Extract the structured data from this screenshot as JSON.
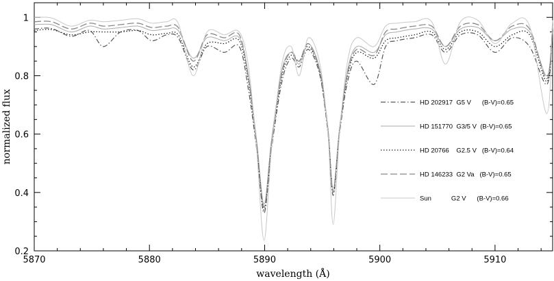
{
  "chart_data": {
    "type": "line",
    "xlabel": "wavelength (Å)",
    "ylabel": "normalized flux",
    "xlim": [
      5870,
      5915
    ],
    "ylim": [
      0.2,
      1.05
    ],
    "x_ticks": [
      5870,
      5880,
      5890,
      5900,
      5910
    ],
    "y_ticks": [
      0.2,
      0.4,
      0.6,
      0.8,
      1
    ],
    "grid": false,
    "legend_position": "center-right",
    "series": [
      {
        "label": "HD 202917  G5 V      (B-V)=0.65",
        "color": "#555555",
        "style": "dashdot",
        "points": [
          [
            5870,
            0.96
          ],
          [
            5871.5,
            0.962
          ],
          [
            5873.2,
            0.935
          ],
          [
            5874.8,
            0.955
          ],
          [
            5876,
            0.9
          ],
          [
            5877.5,
            0.95
          ],
          [
            5879,
            0.955
          ],
          [
            5880.2,
            0.92
          ],
          [
            5881.5,
            0.94
          ],
          [
            5882.5,
            0.93
          ],
          [
            5883.8,
            0.82
          ],
          [
            5885,
            0.9
          ],
          [
            5886.5,
            0.88
          ],
          [
            5887.8,
            0.9
          ],
          [
            5888.6,
            0.75
          ],
          [
            5889.3,
            0.55
          ],
          [
            5889.95,
            0.33
          ],
          [
            5890.6,
            0.55
          ],
          [
            5891.5,
            0.78
          ],
          [
            5892.3,
            0.86
          ],
          [
            5893,
            0.83
          ],
          [
            5893.8,
            0.89
          ],
          [
            5894.8,
            0.8
          ],
          [
            5895.5,
            0.6
          ],
          [
            5895.95,
            0.39
          ],
          [
            5896.5,
            0.6
          ],
          [
            5897.2,
            0.78
          ],
          [
            5898,
            0.85
          ],
          [
            5899.5,
            0.77
          ],
          [
            5900.5,
            0.9
          ],
          [
            5901.5,
            0.92
          ],
          [
            5903,
            0.93
          ],
          [
            5904.5,
            0.94
          ],
          [
            5905.7,
            0.88
          ],
          [
            5907,
            0.94
          ],
          [
            5908.5,
            0.94
          ],
          [
            5910,
            0.88
          ],
          [
            5911.5,
            0.93
          ],
          [
            5913,
            0.9
          ],
          [
            5914.5,
            0.77
          ],
          [
            5915,
            0.95
          ]
        ]
      },
      {
        "label": "HD 151770  G3/5 V  (B-V)=0.65",
        "color": "#aaaaaa",
        "style": "solid",
        "points": [
          [
            5870,
            0.975
          ],
          [
            5871.5,
            0.975
          ],
          [
            5873.2,
            0.95
          ],
          [
            5874.8,
            0.97
          ],
          [
            5876,
            0.96
          ],
          [
            5877.5,
            0.965
          ],
          [
            5879,
            0.97
          ],
          [
            5880.2,
            0.955
          ],
          [
            5881.5,
            0.96
          ],
          [
            5882.5,
            0.955
          ],
          [
            5883.8,
            0.86
          ],
          [
            5885,
            0.93
          ],
          [
            5886.5,
            0.92
          ],
          [
            5887.8,
            0.93
          ],
          [
            5888.6,
            0.8
          ],
          [
            5889.3,
            0.58
          ],
          [
            5889.95,
            0.36
          ],
          [
            5890.6,
            0.58
          ],
          [
            5891.5,
            0.82
          ],
          [
            5892.3,
            0.88
          ],
          [
            5893,
            0.84
          ],
          [
            5893.8,
            0.91
          ],
          [
            5894.8,
            0.82
          ],
          [
            5895.5,
            0.62
          ],
          [
            5895.95,
            0.41
          ],
          [
            5896.5,
            0.62
          ],
          [
            5897.2,
            0.82
          ],
          [
            5898,
            0.9
          ],
          [
            5899.5,
            0.88
          ],
          [
            5900.5,
            0.94
          ],
          [
            5901.5,
            0.95
          ],
          [
            5903,
            0.96
          ],
          [
            5904.5,
            0.96
          ],
          [
            5905.7,
            0.9
          ],
          [
            5907,
            0.96
          ],
          [
            5908.5,
            0.965
          ],
          [
            5910,
            0.92
          ],
          [
            5911.5,
            0.96
          ],
          [
            5913,
            0.95
          ],
          [
            5914.5,
            0.8
          ],
          [
            5915,
            0.97
          ]
        ]
      },
      {
        "label": "HD 20766    G2.5 V   (B-V)=0.64",
        "color": "#222222",
        "style": "dotted",
        "points": [
          [
            5870,
            0.955
          ],
          [
            5871.5,
            0.958
          ],
          [
            5873.2,
            0.94
          ],
          [
            5874.8,
            0.95
          ],
          [
            5876,
            0.95
          ],
          [
            5877.5,
            0.95
          ],
          [
            5879,
            0.955
          ],
          [
            5880.2,
            0.94
          ],
          [
            5881.5,
            0.945
          ],
          [
            5882.5,
            0.94
          ],
          [
            5883.8,
            0.83
          ],
          [
            5885,
            0.91
          ],
          [
            5886.5,
            0.91
          ],
          [
            5887.8,
            0.92
          ],
          [
            5888.6,
            0.78
          ],
          [
            5889.3,
            0.56
          ],
          [
            5889.95,
            0.34
          ],
          [
            5890.6,
            0.56
          ],
          [
            5891.5,
            0.8
          ],
          [
            5892.3,
            0.87
          ],
          [
            5893,
            0.85
          ],
          [
            5893.8,
            0.9
          ],
          [
            5894.8,
            0.81
          ],
          [
            5895.5,
            0.61
          ],
          [
            5895.95,
            0.4
          ],
          [
            5896.5,
            0.61
          ],
          [
            5897.2,
            0.8
          ],
          [
            5898,
            0.88
          ],
          [
            5899.5,
            0.86
          ],
          [
            5900.5,
            0.92
          ],
          [
            5901.5,
            0.93
          ],
          [
            5903,
            0.94
          ],
          [
            5904.5,
            0.95
          ],
          [
            5905.7,
            0.89
          ],
          [
            5907,
            0.95
          ],
          [
            5908.5,
            0.95
          ],
          [
            5910,
            0.9
          ],
          [
            5911.5,
            0.94
          ],
          [
            5913,
            0.94
          ],
          [
            5914.5,
            0.78
          ],
          [
            5915,
            0.95
          ]
        ]
      },
      {
        "label": "HD 146233  G2 Va   (B-V)=0.65",
        "color": "#888888",
        "style": "longdash",
        "points": [
          [
            5870,
            0.985
          ],
          [
            5871.5,
            0.985
          ],
          [
            5873.2,
            0.96
          ],
          [
            5874.8,
            0.98
          ],
          [
            5876,
            0.97
          ],
          [
            5877.5,
            0.975
          ],
          [
            5879,
            0.98
          ],
          [
            5880.2,
            0.965
          ],
          [
            5881.5,
            0.97
          ],
          [
            5882.5,
            0.965
          ],
          [
            5883.8,
            0.85
          ],
          [
            5885,
            0.94
          ],
          [
            5886.5,
            0.93
          ],
          [
            5887.8,
            0.94
          ],
          [
            5888.6,
            0.79
          ],
          [
            5889.3,
            0.57
          ],
          [
            5889.95,
            0.35
          ],
          [
            5890.6,
            0.57
          ],
          [
            5891.5,
            0.81
          ],
          [
            5892.3,
            0.88
          ],
          [
            5893,
            0.85
          ],
          [
            5893.8,
            0.91
          ],
          [
            5894.8,
            0.81
          ],
          [
            5895.5,
            0.61
          ],
          [
            5895.95,
            0.4
          ],
          [
            5896.5,
            0.61
          ],
          [
            5897.2,
            0.81
          ],
          [
            5898,
            0.89
          ],
          [
            5899.5,
            0.87
          ],
          [
            5900.5,
            0.95
          ],
          [
            5901.5,
            0.96
          ],
          [
            5903,
            0.97
          ],
          [
            5904.5,
            0.97
          ],
          [
            5905.7,
            0.9
          ],
          [
            5907,
            0.97
          ],
          [
            5908.5,
            0.975
          ],
          [
            5910,
            0.92
          ],
          [
            5911.5,
            0.97
          ],
          [
            5913,
            0.96
          ],
          [
            5914.5,
            0.79
          ],
          [
            5915,
            0.98
          ]
        ]
      },
      {
        "label": "Sun           G2 V      (B-V)=0.66",
        "color": "#c8c8c8",
        "style": "solid",
        "points": [
          [
            5870,
            1.0
          ],
          [
            5871.5,
            0.998
          ],
          [
            5873.2,
            0.97
          ],
          [
            5874.8,
            0.99
          ],
          [
            5876,
            0.985
          ],
          [
            5877.5,
            0.99
          ],
          [
            5879,
            0.995
          ],
          [
            5880.2,
            0.98
          ],
          [
            5881.5,
            0.985
          ],
          [
            5882.5,
            0.98
          ],
          [
            5883.8,
            0.8
          ],
          [
            5885,
            0.95
          ],
          [
            5886.5,
            0.94
          ],
          [
            5887.8,
            0.95
          ],
          [
            5888.6,
            0.83
          ],
          [
            5889.3,
            0.55
          ],
          [
            5889.95,
            0.235
          ],
          [
            5890.6,
            0.55
          ],
          [
            5891.5,
            0.84
          ],
          [
            5892.3,
            0.9
          ],
          [
            5893,
            0.8
          ],
          [
            5893.8,
            0.93
          ],
          [
            5894.8,
            0.84
          ],
          [
            5895.5,
            0.6
          ],
          [
            5895.95,
            0.29
          ],
          [
            5896.5,
            0.6
          ],
          [
            5897.2,
            0.85
          ],
          [
            5898,
            0.93
          ],
          [
            5899.5,
            0.9
          ],
          [
            5900.5,
            0.97
          ],
          [
            5901.5,
            0.98
          ],
          [
            5903,
            0.985
          ],
          [
            5904.5,
            0.985
          ],
          [
            5905.7,
            0.84
          ],
          [
            5907,
            0.985
          ],
          [
            5908.5,
            0.99
          ],
          [
            5910,
            0.91
          ],
          [
            5911.5,
            0.98
          ],
          [
            5913,
            0.97
          ],
          [
            5914.5,
            0.67
          ],
          [
            5915,
            0.99
          ]
        ]
      }
    ]
  }
}
